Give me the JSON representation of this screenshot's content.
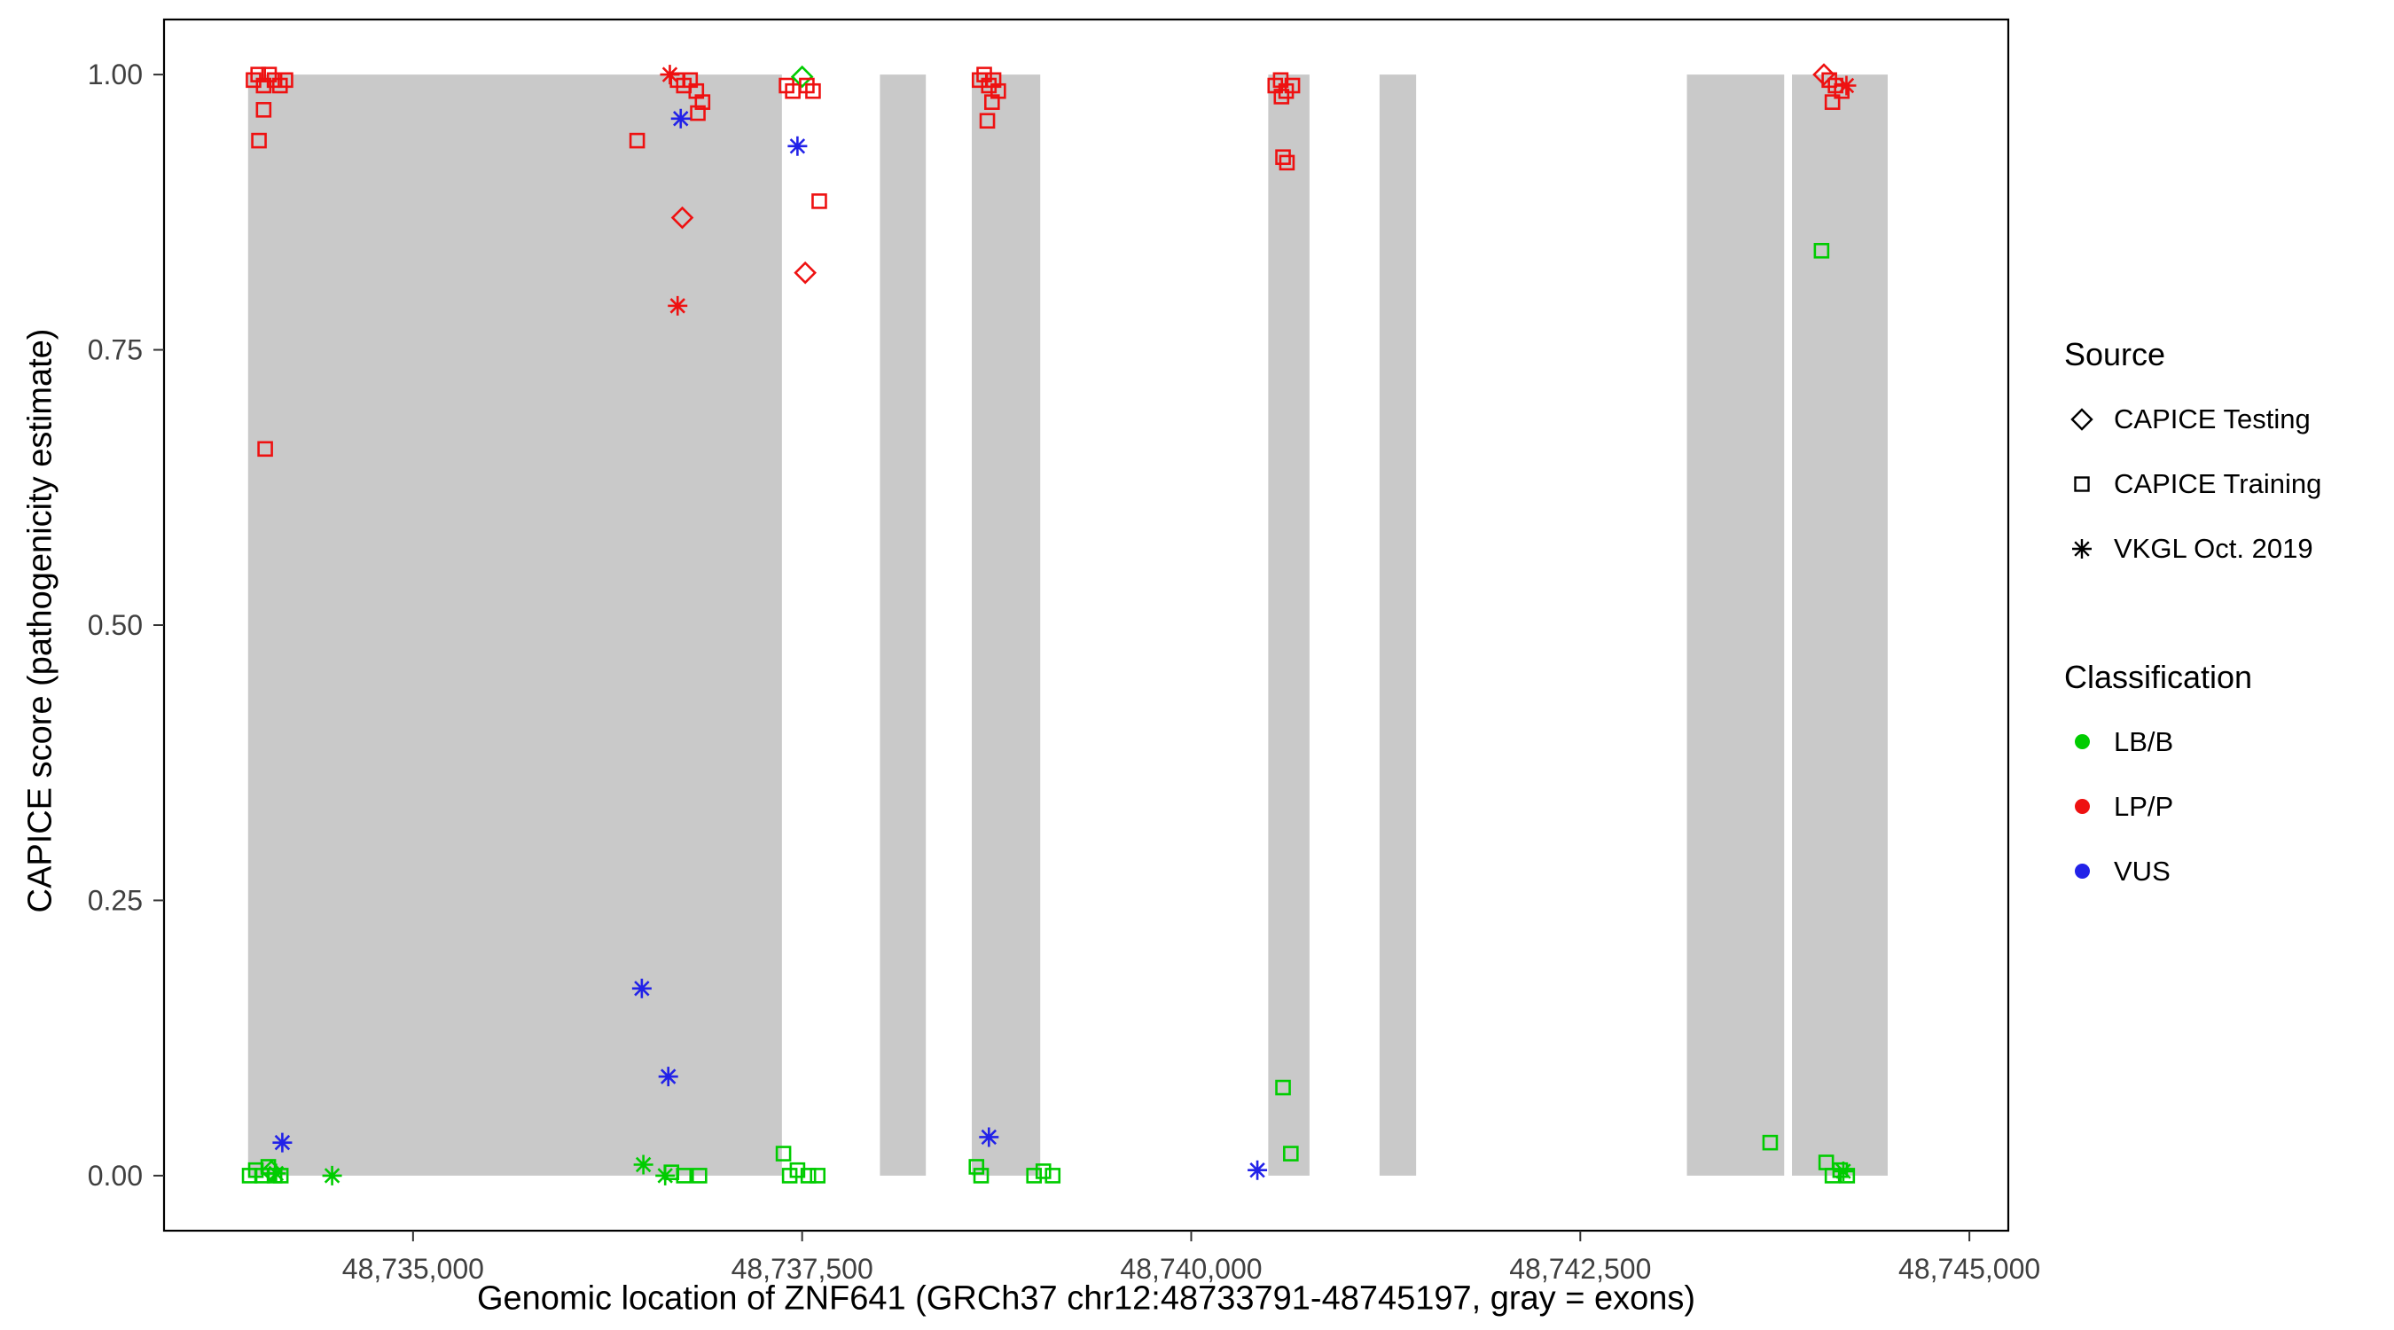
{
  "figure": {
    "x_axis_title": "Genomic location of ZNF641 (GRCh37 chr12:48733791-48745197, gray = exons)",
    "y_axis_title": "CAPICE score (pathogenicity estimate)"
  },
  "legend": {
    "source": {
      "title": "Source",
      "items": [
        {
          "label": "CAPICE Testing",
          "shape": "diamond"
        },
        {
          "label": "CAPICE Training",
          "shape": "square"
        },
        {
          "label": "VKGL Oct. 2019",
          "shape": "asterisk"
        }
      ]
    },
    "classification": {
      "title": "Classification",
      "items": [
        {
          "label": "LB/B",
          "color": "#00CC00"
        },
        {
          "label": "LP/P",
          "color": "#EE1111"
        },
        {
          "label": "VUS",
          "color": "#2222E8"
        }
      ]
    }
  },
  "chart_data": {
    "type": "scatter",
    "title": "",
    "xlabel": "Genomic location of ZNF641 (GRCh37 chr12:48733791-48745197, gray = exons)",
    "ylabel": "CAPICE score (pathogenicity estimate)",
    "xlim": [
      48733400,
      48745250
    ],
    "ylim": [
      -0.05,
      1.05
    ],
    "grid": false,
    "legend_position": "right",
    "x_ticks": [
      {
        "value": 48735000,
        "label": "48,735,000"
      },
      {
        "value": 48737500,
        "label": "48,737,500"
      },
      {
        "value": 48740000,
        "label": "48,740,000"
      },
      {
        "value": 48742500,
        "label": "48,742,500"
      },
      {
        "value": 48745000,
        "label": "48,745,000"
      }
    ],
    "y_ticks": [
      {
        "value": 0.0,
        "label": "0.00"
      },
      {
        "value": 0.25,
        "label": "0.25"
      },
      {
        "value": 0.5,
        "label": "0.50"
      },
      {
        "value": 0.75,
        "label": "0.75"
      },
      {
        "value": 1.0,
        "label": "1.00"
      }
    ],
    "exon_color": "#C9C9C9",
    "exons": [
      [
        48733940,
        48737370
      ],
      [
        48738000,
        48738295
      ],
      [
        48738590,
        48739030
      ],
      [
        48740495,
        48740760
      ],
      [
        48741210,
        48741445
      ],
      [
        48743185,
        48743810
      ],
      [
        48743860,
        48744475
      ]
    ],
    "sources": {
      "te": {
        "label": "CAPICE Testing",
        "shape": "diamond"
      },
      "tr": {
        "label": "CAPICE Training",
        "shape": "square"
      },
      "vk": {
        "label": "VKGL Oct. 2019",
        "shape": "asterisk"
      }
    },
    "classes": {
      "lb": {
        "label": "LB/B",
        "color": "#00CC00"
      },
      "lp": {
        "label": "LP/P",
        "color": "#EE1111"
      },
      "vus": {
        "label": "VUS",
        "color": "#2222E8"
      }
    },
    "points": [
      [
        48733975,
        0.995,
        "tr",
        "lp"
      ],
      [
        48734005,
        1.0,
        "tr",
        "lp"
      ],
      [
        48734040,
        0.99,
        "tr",
        "lp"
      ],
      [
        48734075,
        1.0,
        "tr",
        "lp"
      ],
      [
        48734110,
        0.995,
        "tr",
        "lp"
      ],
      [
        48734145,
        0.99,
        "tr",
        "lp"
      ],
      [
        48734180,
        0.995,
        "tr",
        "lp"
      ],
      [
        48734040,
        0.968,
        "tr",
        "lp"
      ],
      [
        48734010,
        0.94,
        "tr",
        "lp"
      ],
      [
        48734050,
        0.66,
        "tr",
        "lp"
      ],
      [
        48733950,
        0.0,
        "tr",
        "lb"
      ],
      [
        48733990,
        0.005,
        "tr",
        "lb"
      ],
      [
        48734030,
        0.0,
        "tr",
        "lb"
      ],
      [
        48734070,
        0.008,
        "tr",
        "lb"
      ],
      [
        48734110,
        0.0,
        "tr",
        "lb"
      ],
      [
        48734150,
        0.0,
        "tr",
        "lb"
      ],
      [
        48734090,
        0.004,
        "te",
        "lb"
      ],
      [
        48734120,
        0.002,
        "vk",
        "lb"
      ],
      [
        48734480,
        0.0,
        "vk",
        "lb"
      ],
      [
        48734160,
        0.03,
        "vk",
        "vus"
      ],
      [
        48736440,
        0.94,
        "tr",
        "lp"
      ],
      [
        48736650,
        1.0,
        "vk",
        "lp"
      ],
      [
        48736700,
        0.995,
        "tr",
        "lp"
      ],
      [
        48736740,
        0.99,
        "tr",
        "lp"
      ],
      [
        48736780,
        0.995,
        "tr",
        "lp"
      ],
      [
        48736820,
        0.985,
        "tr",
        "lp"
      ],
      [
        48736860,
        0.975,
        "tr",
        "lp"
      ],
      [
        48736830,
        0.965,
        "tr",
        "lp"
      ],
      [
        48736720,
        0.96,
        "vk",
        "vus"
      ],
      [
        48736730,
        0.87,
        "te",
        "lp"
      ],
      [
        48736700,
        0.79,
        "vk",
        "lp"
      ],
      [
        48736470,
        0.17,
        "vk",
        "vus"
      ],
      [
        48736640,
        0.09,
        "vk",
        "vus"
      ],
      [
        48736480,
        0.01,
        "vk",
        "lb"
      ],
      [
        48736620,
        0.0,
        "vk",
        "lb"
      ],
      [
        48736660,
        0.003,
        "tr",
        "lb"
      ],
      [
        48736740,
        0.0,
        "tr",
        "lb"
      ],
      [
        48736840,
        0.0,
        "tr",
        "lb"
      ],
      [
        48737400,
        0.99,
        "tr",
        "lp"
      ],
      [
        48737440,
        0.985,
        "tr",
        "lp"
      ],
      [
        48737500,
        0.998,
        "te",
        "lb"
      ],
      [
        48737530,
        0.99,
        "tr",
        "lp"
      ],
      [
        48737570,
        0.985,
        "tr",
        "lp"
      ],
      [
        48737470,
        0.935,
        "vk",
        "vus"
      ],
      [
        48737610,
        0.885,
        "tr",
        "lp"
      ],
      [
        48737520,
        0.82,
        "te",
        "lp"
      ],
      [
        48737380,
        0.02,
        "tr",
        "lb"
      ],
      [
        48737420,
        0.0,
        "tr",
        "lb"
      ],
      [
        48737470,
        0.005,
        "tr",
        "lb"
      ],
      [
        48737540,
        0.0,
        "tr",
        "lb"
      ],
      [
        48737600,
        0.0,
        "tr",
        "lb"
      ],
      [
        48738640,
        0.995,
        "tr",
        "lp"
      ],
      [
        48738670,
        1.0,
        "tr",
        "lp"
      ],
      [
        48738700,
        0.99,
        "tr",
        "lp"
      ],
      [
        48738730,
        0.995,
        "tr",
        "lp"
      ],
      [
        48738760,
        0.985,
        "tr",
        "lp"
      ],
      [
        48738720,
        0.975,
        "tr",
        "lp"
      ],
      [
        48738690,
        0.958,
        "tr",
        "lp"
      ],
      [
        48738700,
        0.035,
        "vk",
        "vus"
      ],
      [
        48738620,
        0.008,
        "tr",
        "lb"
      ],
      [
        48738650,
        0.0,
        "tr",
        "lb"
      ],
      [
        48738990,
        0.0,
        "tr",
        "lb"
      ],
      [
        48739050,
        0.004,
        "tr",
        "lb"
      ],
      [
        48739110,
        0.0,
        "tr",
        "lb"
      ],
      [
        48740540,
        0.99,
        "tr",
        "lp"
      ],
      [
        48740575,
        0.995,
        "tr",
        "lp"
      ],
      [
        48740610,
        0.985,
        "tr",
        "lp"
      ],
      [
        48740650,
        0.99,
        "tr",
        "lp"
      ],
      [
        48740580,
        0.98,
        "tr",
        "lp"
      ],
      [
        48740590,
        0.925,
        "tr",
        "lp"
      ],
      [
        48740615,
        0.92,
        "tr",
        "lp"
      ],
      [
        48740590,
        0.08,
        "tr",
        "lb"
      ],
      [
        48740640,
        0.02,
        "tr",
        "lb"
      ],
      [
        48740425,
        0.005,
        "vk",
        "vus"
      ],
      [
        48743720,
        0.03,
        "tr",
        "lb"
      ],
      [
        48744065,
        1.0,
        "te",
        "lp"
      ],
      [
        48744100,
        0.995,
        "tr",
        "lp"
      ],
      [
        48744140,
        0.99,
        "tr",
        "lp"
      ],
      [
        48744180,
        0.985,
        "tr",
        "lp"
      ],
      [
        48744120,
        0.975,
        "tr",
        "lp"
      ],
      [
        48744210,
        0.99,
        "vk",
        "lp"
      ],
      [
        48744050,
        0.84,
        "tr",
        "lb"
      ],
      [
        48744080,
        0.012,
        "tr",
        "lb"
      ],
      [
        48744120,
        0.0,
        "tr",
        "lb"
      ],
      [
        48744170,
        0.005,
        "tr",
        "lb"
      ],
      [
        48744215,
        0.0,
        "tr",
        "lb"
      ],
      [
        48744190,
        0.004,
        "vk",
        "lb"
      ]
    ]
  }
}
